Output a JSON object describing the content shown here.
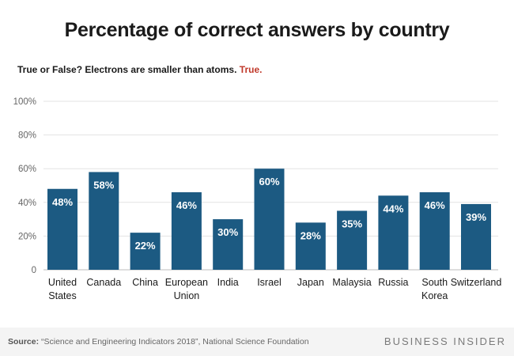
{
  "chart_data": {
    "type": "bar",
    "title": "Percentage of correct answers by country",
    "subtitle": "True or False? Electrons are smaller than atoms.",
    "subtitle_answer": "True.",
    "categories": [
      [
        "United",
        "States"
      ],
      [
        "Canada"
      ],
      [
        "China"
      ],
      [
        "European",
        "Union"
      ],
      [
        "India"
      ],
      [
        "Israel"
      ],
      [
        "Japan"
      ],
      [
        "Malaysia"
      ],
      [
        "Russia"
      ],
      [
        "South",
        "Korea"
      ],
      [
        "Switzerland"
      ]
    ],
    "values": [
      48,
      58,
      22,
      46,
      30,
      60,
      28,
      35,
      44,
      46,
      39
    ],
    "value_labels": [
      "48%",
      "58%",
      "22%",
      "46%",
      "30%",
      "60%",
      "28%",
      "35%",
      "44%",
      "46%",
      "39%"
    ],
    "yticks": [
      "0",
      "20%",
      "40%",
      "60%",
      "80%",
      "100%"
    ],
    "ytick_values": [
      0,
      20,
      40,
      60,
      80,
      100
    ],
    "ylim": [
      0,
      100
    ],
    "xlabel": "",
    "ylabel": "",
    "grid": true,
    "bar_color": "#1c5a82",
    "answer_color": "#c0392b"
  },
  "footer": {
    "source_prefix": "Source:",
    "source_text": " “Science and Engineering Indicators 2018”, National Science Foundation",
    "brand": "BUSINESS INSIDER"
  }
}
